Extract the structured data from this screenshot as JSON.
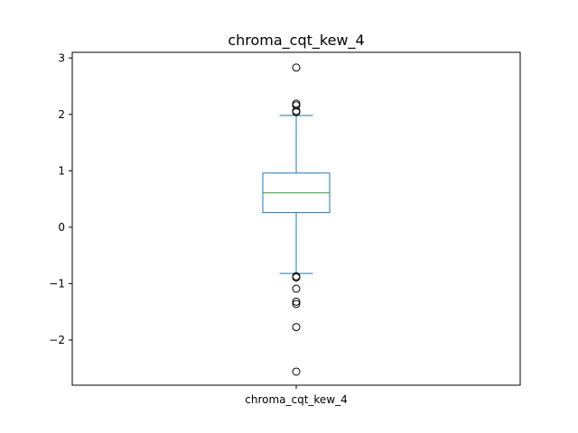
{
  "chart_data": {
    "type": "box",
    "title": "chroma_cqt_kew_4",
    "categories": [
      "chroma_cqt_kew_4"
    ],
    "ylim": [
      -2.8,
      3.1
    ],
    "yticks": [
      -2,
      -1,
      0,
      1,
      2,
      3
    ],
    "ytick_labels": [
      "−2",
      "−1",
      "0",
      "1",
      "2",
      "3"
    ],
    "grid": false,
    "colors": {
      "box": "#1f77b4",
      "median": "#2ca02c",
      "outlier": "#000000"
    },
    "boxes": [
      {
        "name": "chroma_cqt_kew_4",
        "whisker_low": -0.82,
        "q1": 0.26,
        "median": 0.61,
        "q3": 0.96,
        "whisker_high": 1.98,
        "outliers": [
          2.83,
          2.19,
          2.16,
          2.06,
          2.04,
          -0.87,
          -0.89,
          -1.09,
          -1.32,
          -1.36,
          -1.77,
          -2.56
        ]
      }
    ]
  }
}
